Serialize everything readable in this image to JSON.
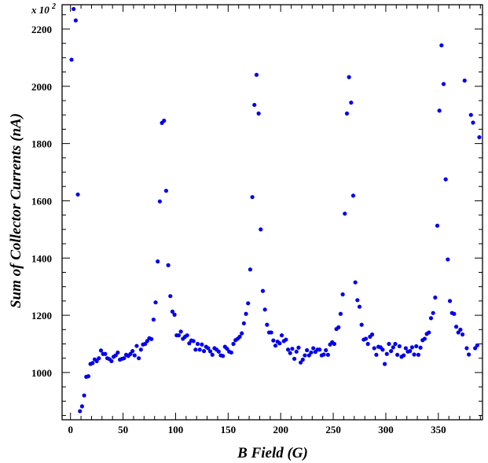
{
  "chart_data": {
    "type": "scatter",
    "title": "",
    "xlabel": "B Field (G)",
    "ylabel": "Sum of Collector Currents (nA)",
    "y_multiplier_label": "x 10",
    "y_multiplier_exponent": "2",
    "xlim": [
      -8,
      392
    ],
    "ylim": [
      835,
      2285
    ],
    "x_ticks": [
      0,
      50,
      100,
      150,
      200,
      250,
      300,
      350
    ],
    "y_ticks": [
      1000,
      1200,
      1400,
      1600,
      1800,
      2000,
      2200
    ],
    "x_tick_labels": [
      "0",
      "50",
      "100",
      "150",
      "200",
      "250",
      "300",
      "350"
    ],
    "y_tick_labels": [
      "1000",
      "1200",
      "1400",
      "1600",
      "1800",
      "2000",
      "2200"
    ],
    "grid": false,
    "marker_color": "#0000ee",
    "series": [
      {
        "points": [
          [
            1,
            2093
          ],
          [
            3,
            2270
          ],
          [
            5,
            2230
          ],
          [
            7,
            1622
          ],
          [
            9,
            865
          ],
          [
            11,
            882
          ],
          [
            13,
            920
          ],
          [
            15,
            985
          ],
          [
            17,
            987
          ],
          [
            19,
            1030
          ],
          [
            21,
            1033
          ],
          [
            23,
            1046
          ],
          [
            25,
            1040
          ],
          [
            27,
            1050
          ],
          [
            29,
            1077
          ],
          [
            31,
            1065
          ],
          [
            33,
            1065
          ],
          [
            35,
            1050
          ],
          [
            37,
            1047
          ],
          [
            39,
            1040
          ],
          [
            41,
            1055
          ],
          [
            43,
            1060
          ],
          [
            45,
            1070
          ],
          [
            47,
            1045
          ],
          [
            49,
            1048
          ],
          [
            51,
            1050
          ],
          [
            53,
            1062
          ],
          [
            55,
            1058
          ],
          [
            57,
            1065
          ],
          [
            59,
            1075
          ],
          [
            61,
            1060
          ],
          [
            63,
            1093
          ],
          [
            65,
            1050
          ],
          [
            67,
            1080
          ],
          [
            69,
            1098
          ],
          [
            71,
            1100
          ],
          [
            73,
            1110
          ],
          [
            75,
            1120
          ],
          [
            77,
            1117
          ],
          [
            79,
            1185
          ],
          [
            81,
            1245
          ],
          [
            83,
            1388
          ],
          [
            85,
            1598
          ],
          [
            87,
            1872
          ],
          [
            89,
            1880
          ],
          [
            91,
            1635
          ],
          [
            93,
            1375
          ],
          [
            95,
            1267
          ],
          [
            97,
            1213
          ],
          [
            99,
            1202
          ],
          [
            101,
            1130
          ],
          [
            103,
            1130
          ],
          [
            105,
            1143
          ],
          [
            107,
            1118
          ],
          [
            109,
            1125
          ],
          [
            111,
            1130
          ],
          [
            113,
            1102
          ],
          [
            115,
            1112
          ],
          [
            117,
            1110
          ],
          [
            119,
            1080
          ],
          [
            121,
            1100
          ],
          [
            123,
            1080
          ],
          [
            125,
            1098
          ],
          [
            127,
            1075
          ],
          [
            129,
            1090
          ],
          [
            131,
            1085
          ],
          [
            133,
            1074
          ],
          [
            135,
            1062
          ],
          [
            137,
            1085
          ],
          [
            139,
            1080
          ],
          [
            141,
            1073
          ],
          [
            143,
            1060
          ],
          [
            145,
            1058
          ],
          [
            147,
            1090
          ],
          [
            149,
            1083
          ],
          [
            151,
            1073
          ],
          [
            153,
            1070
          ],
          [
            155,
            1100
          ],
          [
            157,
            1113
          ],
          [
            159,
            1118
          ],
          [
            161,
            1125
          ],
          [
            163,
            1137
          ],
          [
            165,
            1172
          ],
          [
            167,
            1205
          ],
          [
            169,
            1242
          ],
          [
            171,
            1360
          ],
          [
            173,
            1613
          ],
          [
            175,
            1935
          ],
          [
            177,
            2040
          ],
          [
            179,
            1905
          ],
          [
            181,
            1500
          ],
          [
            183,
            1285
          ],
          [
            185,
            1220
          ],
          [
            187,
            1167
          ],
          [
            189,
            1140
          ],
          [
            191,
            1140
          ],
          [
            193,
            1112
          ],
          [
            195,
            1094
          ],
          [
            197,
            1108
          ],
          [
            199,
            1102
          ],
          [
            201,
            1130
          ],
          [
            203,
            1110
          ],
          [
            205,
            1115
          ],
          [
            207,
            1080
          ],
          [
            209,
            1068
          ],
          [
            211,
            1083
          ],
          [
            213,
            1048
          ],
          [
            215,
            1073
          ],
          [
            217,
            1087
          ],
          [
            219,
            1035
          ],
          [
            221,
            1045
          ],
          [
            223,
            1060
          ],
          [
            225,
            1078
          ],
          [
            227,
            1060
          ],
          [
            229,
            1070
          ],
          [
            231,
            1085
          ],
          [
            233,
            1072
          ],
          [
            235,
            1080
          ],
          [
            237,
            1080
          ],
          [
            239,
            1060
          ],
          [
            241,
            1063
          ],
          [
            243,
            1078
          ],
          [
            245,
            1062
          ],
          [
            247,
            1098
          ],
          [
            249,
            1106
          ],
          [
            251,
            1100
          ],
          [
            253,
            1152
          ],
          [
            255,
            1158
          ],
          [
            257,
            1205
          ],
          [
            259,
            1273
          ],
          [
            261,
            1555
          ],
          [
            263,
            1905
          ],
          [
            265,
            2032
          ],
          [
            267,
            1943
          ],
          [
            269,
            1618
          ],
          [
            271,
            1315
          ],
          [
            273,
            1253
          ],
          [
            275,
            1230
          ],
          [
            277,
            1167
          ],
          [
            279,
            1115
          ],
          [
            281,
            1118
          ],
          [
            283,
            1100
          ],
          [
            285,
            1125
          ],
          [
            287,
            1133
          ],
          [
            289,
            1085
          ],
          [
            291,
            1062
          ],
          [
            293,
            1090
          ],
          [
            295,
            1088
          ],
          [
            297,
            1080
          ],
          [
            299,
            1030
          ],
          [
            301,
            1065
          ],
          [
            303,
            1100
          ],
          [
            305,
            1075
          ],
          [
            307,
            1088
          ],
          [
            309,
            1100
          ],
          [
            311,
            1062
          ],
          [
            313,
            1092
          ],
          [
            315,
            1055
          ],
          [
            317,
            1060
          ],
          [
            319,
            1085
          ],
          [
            321,
            1073
          ],
          [
            323,
            1075
          ],
          [
            325,
            1088
          ],
          [
            327,
            1063
          ],
          [
            329,
            1092
          ],
          [
            331,
            1062
          ],
          [
            333,
            1087
          ],
          [
            335,
            1113
          ],
          [
            337,
            1118
          ],
          [
            339,
            1135
          ],
          [
            341,
            1140
          ],
          [
            343,
            1190
          ],
          [
            345,
            1208
          ],
          [
            347,
            1262
          ],
          [
            349,
            1513
          ],
          [
            351,
            1915
          ],
          [
            353,
            2143
          ],
          [
            355,
            2008
          ],
          [
            357,
            1675
          ],
          [
            359,
            1395
          ],
          [
            361,
            1250
          ],
          [
            363,
            1208
          ],
          [
            365,
            1205
          ],
          [
            367,
            1160
          ],
          [
            369,
            1140
          ],
          [
            371,
            1150
          ],
          [
            373,
            1133
          ],
          [
            375,
            2020
          ],
          [
            377,
            1085
          ],
          [
            379,
            1063
          ],
          [
            381,
            1900
          ],
          [
            383,
            1873
          ],
          [
            385,
            1085
          ],
          [
            387,
            1095
          ],
          [
            389,
            1822
          ]
        ]
      }
    ]
  }
}
